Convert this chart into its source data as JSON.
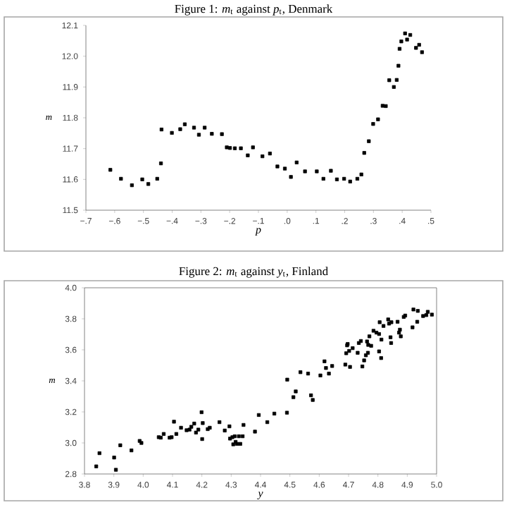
{
  "chart_data": [
    {
      "type": "scatter",
      "title": "Figure 1: *m*$_{t}$ against *p*$_{t}$, Denmark",
      "xlabel": "p",
      "ylabel": "m",
      "marker": "square",
      "xlim": [
        -0.7,
        0.5
      ],
      "ylim": [
        11.5,
        12.1
      ],
      "xticks": [
        {
          "value": -0.7,
          "label": "−.7"
        },
        {
          "value": -0.6,
          "label": "−.6"
        },
        {
          "value": -0.5,
          "label": "−.5"
        },
        {
          "value": -0.4,
          "label": "−.4"
        },
        {
          "value": -0.3,
          "label": "−.3"
        },
        {
          "value": -0.2,
          "label": "−.2"
        },
        {
          "value": -0.1,
          "label": "−.1"
        },
        {
          "value": 0,
          "label": ".0"
        },
        {
          "value": 0.1,
          "label": ".1"
        },
        {
          "value": 0.2,
          "label": ".2"
        },
        {
          "value": 0.3,
          "label": ".3"
        },
        {
          "value": 0.4,
          "label": ".4"
        },
        {
          "value": 0.5,
          "label": ".5"
        }
      ],
      "yticks": [
        11.5,
        11.6,
        11.7,
        11.8,
        11.9,
        {
          "value": 12.0,
          "label": "12.0"
        },
        12.1
      ],
      "series": [
        {
          "color": "#000000",
          "x": [
            -0.615,
            -0.578,
            -0.54,
            -0.504,
            -0.483,
            -0.452,
            -0.439,
            -0.437,
            -0.401,
            -0.372,
            -0.356,
            -0.324,
            -0.307,
            -0.287,
            -0.262,
            -0.227,
            -0.21,
            -0.199,
            -0.182,
            -0.161,
            -0.137,
            -0.119,
            -0.086,
            -0.06,
            -0.034,
            -0.008,
            0.013,
            0.033,
            0.062,
            0.103,
            0.126,
            0.152,
            0.173,
            0.198,
            0.219,
            0.244,
            0.258,
            0.268,
            0.284,
            0.299,
            0.316,
            0.332,
            0.343,
            0.355,
            0.371,
            0.381,
            0.387,
            0.391,
            0.397,
            0.41,
            0.417,
            0.428,
            0.448,
            0.459,
            0.469
          ],
          "values": [
            11.631,
            11.602,
            11.581,
            11.6,
            11.585,
            11.602,
            11.652,
            11.762,
            11.751,
            11.763,
            11.779,
            11.768,
            11.745,
            11.768,
            11.748,
            11.747,
            11.704,
            11.702,
            11.701,
            11.701,
            11.678,
            11.704,
            11.675,
            11.684,
            11.642,
            11.635,
            11.608,
            11.655,
            11.626,
            11.626,
            11.602,
            11.628,
            11.6,
            11.602,
            11.593,
            11.602,
            11.616,
            11.686,
            11.724,
            11.78,
            11.795,
            11.839,
            11.838,
            11.922,
            11.9,
            11.923,
            11.969,
            12.024,
            12.048,
            12.074,
            12.054,
            12.069,
            12.027,
            12.037,
            12.013
          ]
        }
      ]
    },
    {
      "type": "scatter",
      "title": "Figure 2: *m*$_{t}$ against *y*$_{t}$, Finland",
      "xlabel": "y",
      "ylabel": "m",
      "marker": "square",
      "xlim": [
        3.8,
        5.0
      ],
      "ylim": [
        2.8,
        4.0
      ],
      "xticks": [
        3.8,
        3.9,
        {
          "value": 4.0,
          "label": "4.0"
        },
        4.1,
        4.2,
        4.3,
        4.4,
        4.5,
        4.6,
        4.7,
        4.8,
        4.9,
        {
          "value": 5.0,
          "label": "5.0"
        }
      ],
      "yticks": [
        2.8,
        {
          "value": 3.0,
          "label": "3.0"
        },
        3.2,
        3.4,
        3.6,
        3.8,
        {
          "value": 4.0,
          "label": "4.0"
        }
      ],
      "series": [
        {
          "color": "#000000",
          "x": [
            3.84,
            3.851,
            3.901,
            3.907,
            3.922,
            3.96,
            3.988,
            3.994,
            4.053,
            4.06,
            4.07,
            4.09,
            4.097,
            4.105,
            4.113,
            4.129,
            4.148,
            4.158,
            4.164,
            4.174,
            4.18,
            4.188,
            4.199,
            4.203,
            4.201,
            4.22,
            4.227,
            4.26,
            4.278,
            4.294,
            4.296,
            4.304,
            4.307,
            4.312,
            4.315,
            4.32,
            4.326,
            4.331,
            4.339,
            4.342,
            4.381,
            4.394,
            4.423,
            4.447,
            4.49,
            4.491,
            4.512,
            4.52,
            4.536,
            4.562,
            4.572,
            4.578,
            4.604,
            4.618,
            4.623,
            4.633,
            4.644,
            4.689,
            4.692,
            4.695,
            4.697,
            4.702,
            4.705,
            4.714,
            4.731,
            4.735,
            4.742,
            4.747,
            4.753,
            4.759,
            4.763,
            4.766,
            4.767,
            4.771,
            4.777,
            4.785,
            4.795,
            4.804,
            4.804,
            4.806,
            4.811,
            4.812,
            4.819,
            4.835,
            4.838,
            4.843,
            4.845,
            4.846,
            4.867,
            4.872,
            4.875,
            4.878,
            4.888,
            4.893,
            4.918,
            4.921,
            4.936,
            4.934,
            4.954,
            4.965,
            4.97,
            4.984
          ],
          "values": [
            2.849,
            2.934,
            2.906,
            2.827,
            2.985,
            2.952,
            3.013,
            3.0,
            3.037,
            3.034,
            3.058,
            3.034,
            3.037,
            3.137,
            3.058,
            3.098,
            3.082,
            3.086,
            3.104,
            3.125,
            3.067,
            3.086,
            3.198,
            3.128,
            3.025,
            3.089,
            3.098,
            3.134,
            3.08,
            3.107,
            3.028,
            3.037,
            2.991,
            3.043,
            3.007,
            2.994,
            3.043,
            2.994,
            3.043,
            3.116,
            3.073,
            3.18,
            3.134,
            3.189,
            3.195,
            3.408,
            3.295,
            3.332,
            3.456,
            3.447,
            3.307,
            3.277,
            3.435,
            3.526,
            3.483,
            3.447,
            3.496,
            3.505,
            3.578,
            3.629,
            3.638,
            3.593,
            3.49,
            3.611,
            3.581,
            3.644,
            3.657,
            3.493,
            3.532,
            3.565,
            3.654,
            3.581,
            3.632,
            3.687,
            3.626,
            3.723,
            3.711,
            3.702,
            3.59,
            3.778,
            3.547,
            3.666,
            3.754,
            3.796,
            3.769,
            3.681,
            3.644,
            3.778,
            3.781,
            3.711,
            3.73,
            3.687,
            3.812,
            3.821,
            3.745,
            3.86,
            3.851,
            3.781,
            3.818,
            3.824,
            3.845,
            3.827
          ]
        }
      ]
    }
  ]
}
